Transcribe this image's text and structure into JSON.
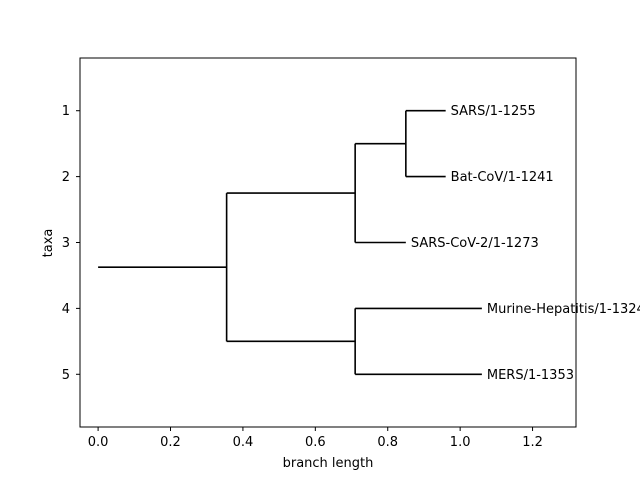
{
  "chart_data": {
    "type": "dendrogram",
    "xlabel": "branch length",
    "ylabel": "taxa",
    "xlim": [
      -0.05,
      1.32
    ],
    "ylim": [
      5.8,
      0.2
    ],
    "xticks": [
      0.0,
      0.2,
      0.4,
      0.6,
      0.8,
      1.0,
      1.2
    ],
    "xtick_labels": [
      "0.0",
      "0.2",
      "0.4",
      "0.6",
      "0.8",
      "1.0",
      "1.2"
    ],
    "yticks": [
      1,
      2,
      3,
      4,
      5
    ],
    "ytick_labels": [
      "1",
      "2",
      "3",
      "4",
      "5"
    ],
    "grid": false,
    "line_color": "#000000",
    "leaves": [
      {
        "name": "SARS/1-1255",
        "y": 1,
        "x": 0.96
      },
      {
        "name": "Bat-CoV/1-1241",
        "y": 2,
        "x": 0.96
      },
      {
        "name": "SARS-CoV-2/1-1273",
        "y": 3,
        "x": 0.85
      },
      {
        "name": "Murine-Hepatitis/1-1324",
        "y": 4,
        "x": 1.06
      },
      {
        "name": "MERS/1-1353",
        "y": 5,
        "x": 1.06
      }
    ],
    "branches": [
      {
        "x0": 0.0,
        "x1": 0.355,
        "y": 3.375
      },
      {
        "x0": 0.355,
        "x1": 0.71,
        "y": 2.25
      },
      {
        "x0": 0.355,
        "x1": 0.71,
        "y": 4.5
      },
      {
        "x0": 0.71,
        "x1": 0.85,
        "y": 1.5
      },
      {
        "x0": 0.71,
        "x1": 0.85,
        "y": 3
      },
      {
        "x0": 0.85,
        "x1": 0.96,
        "y": 1
      },
      {
        "x0": 0.85,
        "x1": 0.96,
        "y": 2
      },
      {
        "x0": 0.71,
        "x1": 1.06,
        "y": 4
      },
      {
        "x0": 0.71,
        "x1": 1.06,
        "y": 5
      }
    ],
    "connectors": [
      {
        "x": 0.355,
        "y0": 2.25,
        "y1": 4.5
      },
      {
        "x": 0.71,
        "y0": 1.5,
        "y1": 3
      },
      {
        "x": 0.85,
        "y0": 1,
        "y1": 2
      },
      {
        "x": 0.71,
        "y0": 4,
        "y1": 5
      }
    ]
  }
}
